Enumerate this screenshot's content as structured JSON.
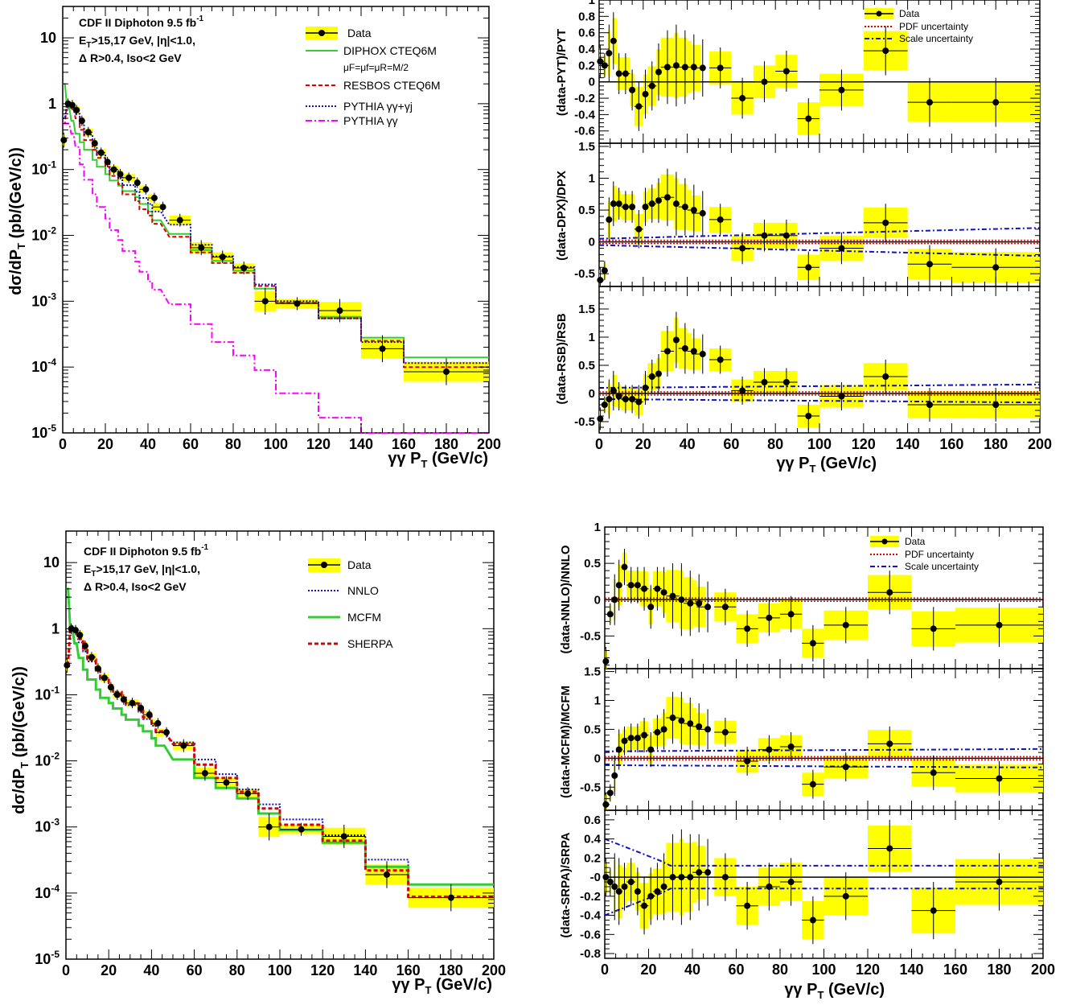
{
  "colors": {
    "band": "#ffff00",
    "diphox": "#33cc33",
    "resbos": "#e00000",
    "pythia": "#1010c8",
    "pythia_gg": "#ff00ff",
    "mcfm": "#33cc33",
    "nnlo": "#1010c8",
    "sherpa": "#e00000",
    "pdf": "#e00000",
    "scale": "#1010c8",
    "marker": "#000000"
  },
  "annot_top": {
    "line1": "CDF II  Diphoton   9.5 fb",
    "line1_sup": "-1",
    "line2a": "E",
    "line2_sub": "T",
    "line2b": ">15,17 GeV, |η|<1.0,",
    "line3": "Δ R>0.4, Iso<2 GeV"
  },
  "annot_bottom": {
    "line1": "CDF II  Diphoton   9.5 fb",
    "line1_sup": "-1",
    "line2a": "E",
    "line2_sub": "T",
    "line2b": ">15,17 GeV, |η|<1.0,",
    "line3": "Δ R>0.4, Iso<2 GeV"
  },
  "legend_top": {
    "data": "Data",
    "diphox": "DIPHOX CTEQ6M",
    "diphox_scale": "μF=μf=μR=M/2",
    "resbos": "RESBOS CTEQ6M",
    "pythia": "PYTHIA γγ+γj",
    "pythia_gg": "PYTHIA γγ"
  },
  "legend_bottom": {
    "data": "Data",
    "nnlo": "NNLO",
    "mcfm": "MCFM",
    "sherpa": "SHERPA"
  },
  "ratio_legend_top": {
    "data": "Data",
    "pdf": "PDF uncertainty",
    "scale": "Scale uncertainty"
  },
  "ratio_legend_bottom": {
    "data": "Data",
    "pdf": "PDF uncertainty",
    "scale": "Scale uncertainty"
  },
  "chart_data": [
    {
      "type": "line",
      "title": "",
      "xlabel": "γγ P_T (GeV/c)",
      "ylabel": "dσ/dP_T (pb/(GeV/c))",
      "xlim": [
        0,
        200
      ],
      "ylim": [
        1e-05,
        30
      ],
      "log_y": true,
      "x_ticks": [
        0,
        20,
        40,
        60,
        80,
        100,
        120,
        140,
        160,
        180,
        200
      ],
      "y_ticks": [
        "10^-5",
        "10^-4",
        "10^-3",
        "10^-2",
        "10^-1",
        "1",
        "10"
      ],
      "series": [
        {
          "name": "Data",
          "x": [
            0.5,
            2.5,
            4.5,
            6.5,
            9,
            12,
            15,
            18,
            21,
            24,
            27,
            31,
            35,
            39,
            43,
            47,
            55,
            65,
            75,
            85,
            95,
            110,
            130,
            150,
            180
          ],
          "y": [
            0.28,
            1.0,
            0.95,
            0.8,
            0.55,
            0.37,
            0.25,
            0.18,
            0.13,
            0.1,
            0.085,
            0.075,
            0.063,
            0.05,
            0.037,
            0.027,
            0.017,
            0.0065,
            0.0047,
            0.0032,
            0.001,
            0.00092,
            0.00072,
            0.00019,
            8.5e-05
          ]
        },
        {
          "name": "DIPHOX CTEQ6M",
          "x": [
            0.5,
            2.5,
            4.5,
            6.5,
            9,
            12,
            15,
            18,
            21,
            24,
            27,
            31,
            35,
            39,
            43,
            47,
            55,
            65,
            75,
            85,
            95,
            110,
            130,
            150,
            180
          ],
          "y": [
            2.0,
            0.9,
            0.55,
            0.35,
            0.26,
            0.2,
            0.14,
            0.11,
            0.085,
            0.068,
            0.057,
            0.047,
            0.038,
            0.03,
            0.023,
            0.017,
            0.0105,
            0.006,
            0.0041,
            0.0029,
            0.00155,
            0.00095,
            0.00058,
            0.00028,
            0.00014
          ]
        },
        {
          "name": "RESBOS CTEQ6M",
          "x": [
            0.5,
            2.5,
            4.5,
            6.5,
            9,
            12,
            15,
            18,
            21,
            24,
            27,
            31,
            35,
            39,
            43,
            47,
            55,
            65,
            75,
            85,
            95,
            110,
            130,
            150,
            180
          ],
          "y": [
            0.5,
            1.0,
            0.85,
            0.6,
            0.4,
            0.28,
            0.2,
            0.15,
            0.11,
            0.08,
            0.06,
            0.042,
            0.033,
            0.025,
            0.02,
            0.015,
            0.0095,
            0.0055,
            0.0038,
            0.0027,
            0.0017,
            0.00095,
            0.00055,
            0.00025,
            0.0001
          ]
        },
        {
          "name": "PYTHIA γγ+γj",
          "x": [
            0.5,
            2.5,
            4.5,
            6.5,
            9,
            12,
            15,
            18,
            21,
            24,
            27,
            31,
            35,
            39,
            43,
            47,
            55,
            65,
            75,
            85,
            95,
            110,
            130,
            150,
            180
          ],
          "y": [
            0.6,
            1.0,
            0.9,
            0.7,
            0.5,
            0.34,
            0.24,
            0.17,
            0.125,
            0.095,
            0.075,
            0.058,
            0.046,
            0.037,
            0.03,
            0.023,
            0.0145,
            0.0072,
            0.0048,
            0.0033,
            0.0018,
            0.001,
            0.00055,
            0.00024,
            0.000115
          ]
        },
        {
          "name": "PYTHIA γγ",
          "x": [
            0.5,
            2.5,
            4.5,
            6.5,
            9,
            12,
            15,
            18,
            21,
            24,
            27,
            31,
            35,
            39,
            43,
            47,
            55,
            65,
            75,
            85,
            95,
            110,
            130,
            150,
            180
          ],
          "y": [
            0.5,
            0.5,
            0.35,
            0.22,
            0.12,
            0.07,
            0.042,
            0.027,
            0.018,
            0.012,
            0.0085,
            0.0058,
            0.004,
            0.0028,
            0.002,
            0.0015,
            0.0009,
            0.00045,
            0.00024,
            0.00015,
            9e-05,
            4e-05,
            1.7e-05,
            8.2e-06,
            5e-06
          ]
        }
      ]
    },
    {
      "type": "scatter",
      "ylabel": "(data-PYT)/PYT",
      "xlim": [
        0,
        200
      ],
      "ylim": [
        -0.75,
        1
      ],
      "y_ticks": [
        "-0.6",
        "-0.4",
        "-0.2",
        "0",
        "0.2",
        "0.4",
        "0.6",
        "0.8",
        "1"
      ],
      "x": [
        0.5,
        2.5,
        4.5,
        6.5,
        9,
        12,
        15,
        18,
        21,
        24,
        27,
        31,
        35,
        39,
        43,
        47,
        55,
        65,
        75,
        85,
        95,
        110,
        130,
        150,
        180
      ],
      "y": [
        0.25,
        0.2,
        0.35,
        0.5,
        0.1,
        0.1,
        -0.1,
        -0.3,
        -0.15,
        -0.05,
        0.12,
        0.18,
        0.2,
        0.18,
        0.18,
        0.17,
        0.17,
        -0.2,
        0.0,
        0.13,
        -0.45,
        -0.1,
        0.38,
        -0.25,
        -0.25
      ]
    },
    {
      "type": "scatter",
      "ylabel": "(data-DPX)/DPX",
      "xlim": [
        0,
        200
      ],
      "ylim": [
        -0.7,
        1.55
      ],
      "y_ticks": [
        "-0.5",
        "0",
        "0.5",
        "1",
        "1.5"
      ],
      "x": [
        0.5,
        2.5,
        4.5,
        6.5,
        9,
        12,
        15,
        18,
        21,
        24,
        27,
        31,
        35,
        39,
        43,
        47,
        55,
        65,
        75,
        85,
        95,
        110,
        130,
        150,
        180
      ],
      "y": [
        -0.6,
        -0.45,
        0.35,
        0.6,
        0.6,
        0.55,
        0.55,
        0.2,
        0.55,
        0.6,
        0.65,
        0.7,
        0.6,
        0.55,
        0.5,
        0.45,
        0.35,
        -0.1,
        0.1,
        0.1,
        -0.4,
        -0.1,
        0.3,
        -0.35,
        -0.4
      ]
    },
    {
      "type": "scatter",
      "ylabel": "(data-RSB)/RSB",
      "xlim": [
        0,
        200
      ],
      "ylim": [
        -0.7,
        1.9
      ],
      "y_ticks": [
        "-0.5",
        "0",
        "0.5",
        "1",
        "1.5"
      ],
      "x": [
        0.5,
        2.5,
        4.5,
        6.5,
        9,
        12,
        15,
        18,
        21,
        24,
        27,
        31,
        35,
        39,
        43,
        47,
        55,
        65,
        75,
        85,
        95,
        110,
        130,
        150,
        180
      ],
      "y": [
        -0.45,
        -0.2,
        -0.1,
        0.05,
        -0.05,
        -0.1,
        -0.1,
        -0.15,
        0.1,
        0.3,
        0.35,
        0.75,
        0.95,
        0.8,
        0.75,
        0.7,
        0.6,
        0.05,
        0.2,
        0.2,
        -0.4,
        -0.05,
        0.3,
        -0.2,
        -0.2
      ],
      "xlabel": "γγ P_T (GeV/c)",
      "x_ticks": [
        0,
        20,
        40,
        60,
        80,
        100,
        120,
        140,
        160,
        180,
        200
      ]
    },
    {
      "type": "line",
      "xlabel": "γγ P_T (GeV/c)",
      "ylabel": "dσ/dP_T (pb/(GeV/c))",
      "xlim": [
        0,
        200
      ],
      "ylim": [
        1e-05,
        30
      ],
      "log_y": true,
      "x_ticks": [
        0,
        20,
        40,
        60,
        80,
        100,
        120,
        140,
        160,
        180,
        200
      ],
      "y_ticks": [
        "10^-5",
        "10^-4",
        "10^-3",
        "10^-2",
        "10^-1",
        "1",
        "10"
      ],
      "series": [
        {
          "name": "Data",
          "x": [
            0.5,
            2.5,
            4.5,
            6.5,
            9,
            12,
            15,
            18,
            21,
            24,
            27,
            31,
            35,
            39,
            43,
            47,
            55,
            65,
            75,
            85,
            95,
            110,
            130,
            150,
            180
          ],
          "y": [
            0.28,
            1.0,
            0.95,
            0.8,
            0.55,
            0.37,
            0.25,
            0.18,
            0.13,
            0.1,
            0.085,
            0.075,
            0.063,
            0.05,
            0.037,
            0.027,
            0.017,
            0.0065,
            0.0047,
            0.0032,
            0.001,
            0.00092,
            0.00072,
            0.00019,
            8.5e-05
          ]
        },
        {
          "name": "NNLO",
          "x": [
            0.5,
            2.5,
            4.5,
            6.5,
            9,
            12,
            15,
            18,
            21,
            24,
            27,
            31,
            35,
            39,
            43,
            47,
            55,
            65,
            75,
            85,
            95,
            110,
            130,
            150,
            180
          ],
          "y": [
            3.0,
            1.1,
            0.85,
            0.62,
            0.45,
            0.32,
            0.23,
            0.17,
            0.13,
            0.105,
            0.085,
            0.07,
            0.055,
            0.043,
            0.034,
            0.027,
            0.019,
            0.0105,
            0.0063,
            0.0037,
            0.0022,
            0.0013,
            0.00075,
            0.00032,
            0.000135
          ]
        },
        {
          "name": "MCFM",
          "x": [
            0.5,
            2.5,
            4.5,
            6.5,
            9,
            12,
            15,
            18,
            21,
            24,
            27,
            31,
            35,
            39,
            43,
            47,
            55,
            65,
            75,
            85,
            95,
            110,
            130,
            150,
            180
          ],
          "y": [
            4.0,
            1.0,
            0.6,
            0.36,
            0.24,
            0.17,
            0.12,
            0.09,
            0.075,
            0.062,
            0.05,
            0.042,
            0.034,
            0.028,
            0.022,
            0.017,
            0.0105,
            0.0055,
            0.0039,
            0.0027,
            0.0016,
            0.0009,
            0.00058,
            0.00025,
            0.000135
          ]
        },
        {
          "name": "SHERPA",
          "x": [
            0.5,
            2.5,
            4.5,
            6.5,
            9,
            12,
            15,
            18,
            21,
            24,
            27,
            31,
            35,
            39,
            43,
            47,
            55,
            65,
            75,
            85,
            95,
            110,
            130,
            150,
            180
          ],
          "y": [
            0.3,
            1.0,
            0.9,
            0.7,
            0.5,
            0.34,
            0.24,
            0.18,
            0.14,
            0.11,
            0.09,
            0.074,
            0.058,
            0.046,
            0.036,
            0.028,
            0.018,
            0.0088,
            0.0055,
            0.0034,
            0.0019,
            0.00108,
            0.00062,
            0.00022,
            8.8e-05
          ]
        }
      ]
    },
    {
      "type": "scatter",
      "ylabel": "(data-NNLO)/NNLO",
      "xlim": [
        0,
        200
      ],
      "ylim": [
        -0.95,
        1.0
      ],
      "y_ticks": [
        "-0.5",
        "0",
        "0.5",
        "1"
      ],
      "x": [
        0.5,
        2.5,
        4.5,
        6.5,
        9,
        12,
        15,
        18,
        21,
        24,
        27,
        31,
        35,
        39,
        43,
        47,
        55,
        65,
        75,
        85,
        95,
        110,
        130,
        150,
        180
      ],
      "y": [
        -0.85,
        -0.2,
        0.0,
        0.2,
        0.45,
        0.2,
        0.2,
        0.15,
        -0.1,
        0.15,
        0.1,
        0.05,
        0.0,
        -0.05,
        -0.05,
        -0.1,
        -0.1,
        -0.4,
        -0.25,
        -0.2,
        -0.6,
        -0.35,
        0.1,
        -0.4,
        -0.35
      ]
    },
    {
      "type": "scatter",
      "ylabel": "(data-MCFM)/MCFM",
      "xlim": [
        0,
        200
      ],
      "ylim": [
        -0.9,
        1.55
      ],
      "y_ticks": [
        "-0.5",
        "0",
        "0.5",
        "1",
        "1.5"
      ],
      "x": [
        0.5,
        2.5,
        4.5,
        6.5,
        9,
        12,
        15,
        18,
        21,
        24,
        27,
        31,
        35,
        39,
        43,
        47,
        55,
        65,
        75,
        85,
        95,
        110,
        130,
        150,
        180
      ],
      "y": [
        -0.8,
        -0.6,
        -0.3,
        0.15,
        0.3,
        0.35,
        0.35,
        0.4,
        0.15,
        0.45,
        0.5,
        0.7,
        0.65,
        0.6,
        0.55,
        0.5,
        0.45,
        -0.05,
        0.15,
        0.2,
        -0.45,
        -0.15,
        0.25,
        -0.25,
        -0.35
      ]
    },
    {
      "type": "scatter",
      "ylabel": "(data-SRPA)/SRPA",
      "xlim": [
        0,
        200
      ],
      "ylim": [
        -0.85,
        0.7
      ],
      "y_ticks": [
        "-0.8",
        "-0.6",
        "-0.4",
        "-0.2",
        "-0",
        "0.2",
        "0.4",
        "0.6"
      ],
      "x": [
        0.5,
        2.5,
        4.5,
        6.5,
        9,
        12,
        15,
        18,
        21,
        24,
        27,
        31,
        35,
        39,
        43,
        47,
        55,
        65,
        75,
        85,
        95,
        110,
        130,
        150,
        180
      ],
      "y": [
        0.0,
        -0.05,
        -0.1,
        -0.15,
        -0.1,
        -0.05,
        -0.15,
        -0.3,
        -0.2,
        -0.15,
        -0.1,
        0.0,
        0.0,
        0.0,
        0.05,
        0.05,
        0.0,
        -0.3,
        -0.1,
        -0.05,
        -0.45,
        -0.2,
        0.3,
        -0.35,
        -0.05
      ],
      "xlabel": "γγ P_T (GeV/c)",
      "x_ticks": [
        0,
        20,
        40,
        60,
        80,
        100,
        120,
        140,
        160,
        180,
        200
      ]
    }
  ]
}
